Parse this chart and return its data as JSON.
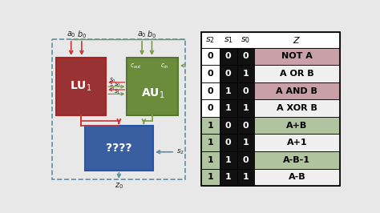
{
  "bg_color": "#e8e8e8",
  "dashed_box_color": "#5b8fa8",
  "lu_box_color": "#993333",
  "au_box_color": "#6b8c3a",
  "mux_box_color": "#3a5fa0",
  "lu_label": "LU$_1$",
  "au_label": "AU$_1$",
  "mux_label": "????",
  "table_rows": [
    [
      0,
      0,
      0,
      "NOT A"
    ],
    [
      0,
      0,
      1,
      "A OR B"
    ],
    [
      0,
      1,
      0,
      "A AND B"
    ],
    [
      0,
      1,
      1,
      "A XOR B"
    ],
    [
      1,
      0,
      0,
      "A+B"
    ],
    [
      1,
      0,
      1,
      "A+1"
    ],
    [
      1,
      1,
      0,
      "A-B-1"
    ],
    [
      1,
      1,
      1,
      "A-B"
    ]
  ],
  "row_colors": [
    "#c9a0a8",
    "#f0f0f0",
    "#c9a0a8",
    "#f0f0f0",
    "#b0c4a0",
    "#f0f0f0",
    "#b0c4a0",
    "#f0f0f0"
  ],
  "arrow_red": "#cc3333",
  "arrow_green": "#7a9c40",
  "arrow_blue": "#5b8fa8",
  "text_dark": "#222222",
  "text_light": "#dddddd"
}
